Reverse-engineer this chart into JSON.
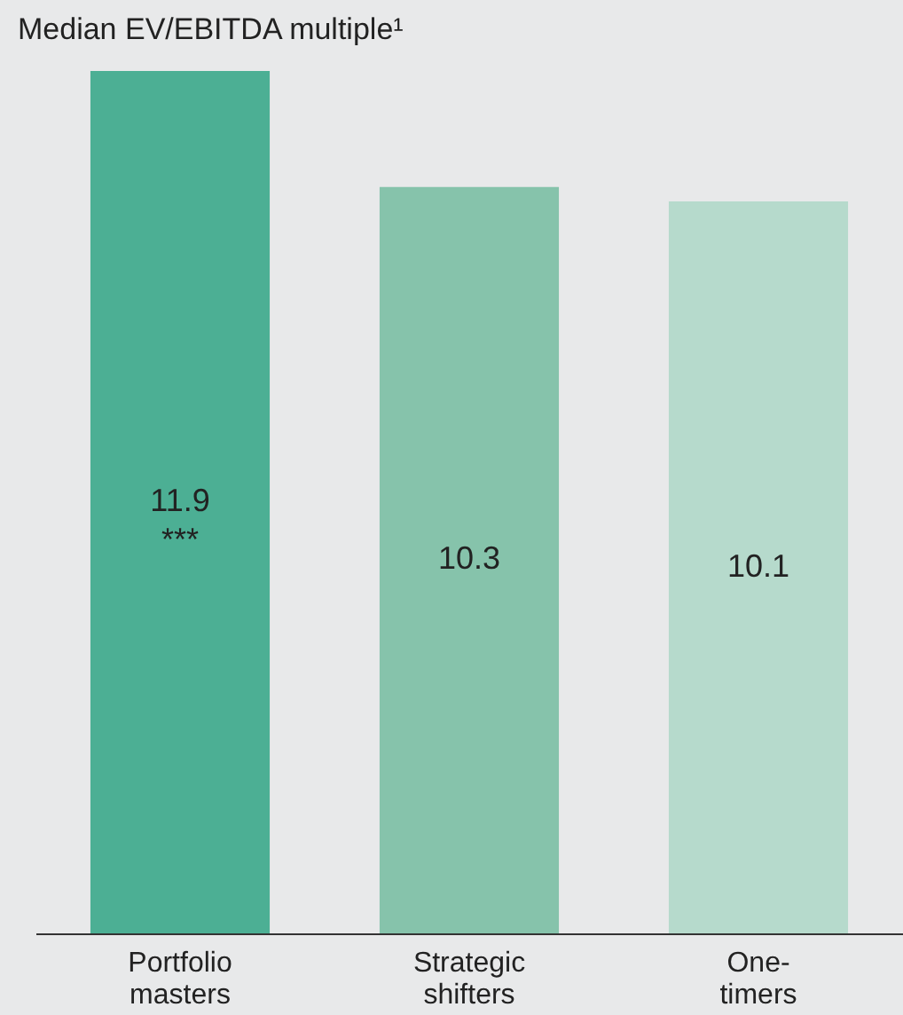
{
  "chart_data": {
    "type": "bar",
    "title": "Median EV/EBITDA multiple¹",
    "categories": [
      "Portfolio masters",
      "Strategic shifters",
      "One-timers"
    ],
    "values": [
      11.9,
      10.3,
      10.1
    ],
    "colors": [
      "#4caf94",
      "#86c3ab",
      "#b6dacc"
    ],
    "data_labels": true,
    "annotations": [
      "***"
    ]
  }
}
